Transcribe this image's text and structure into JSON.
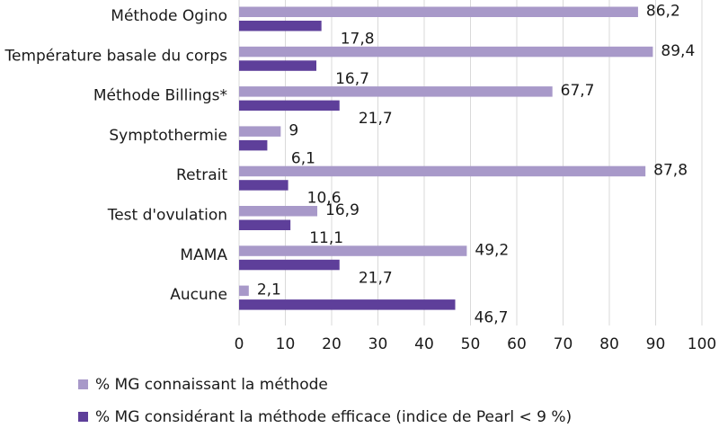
{
  "chart_data": {
    "type": "bar",
    "orientation": "horizontal",
    "categories": [
      "Méthode Ogino",
      "Température basale du corps",
      "Méthode Billings*",
      "Symptothermie",
      "Retrait",
      "Test d'ovulation",
      "MAMA",
      "Aucune"
    ],
    "series": [
      {
        "name": "% MG connaissant la méthode",
        "color": "#a899c9",
        "values": [
          86.2,
          89.4,
          67.7,
          9,
          87.8,
          16.9,
          49.2,
          2.1
        ],
        "labels": [
          "86,2",
          "89,4",
          "67,7",
          "9",
          "87,8",
          "16,9",
          "49,2",
          "2,1"
        ]
      },
      {
        "name": "% MG considérant la méthode efficace (indice de Pearl < 9 %)",
        "color": "#5e3f9a",
        "values": [
          17.8,
          16.7,
          21.7,
          6.1,
          10.6,
          11.1,
          21.7,
          46.7
        ],
        "labels": [
          "17,8",
          "16,7",
          "21,7",
          "6,1",
          "10,6",
          "11,1",
          "21,7",
          "46,7"
        ]
      }
    ],
    "xlim": [
      0,
      100
    ],
    "xticks": [
      0,
      10,
      20,
      30,
      40,
      50,
      60,
      70,
      80,
      90,
      100
    ],
    "grid": true,
    "legend": "bottom",
    "title": "",
    "xlabel": "",
    "ylabel": ""
  }
}
